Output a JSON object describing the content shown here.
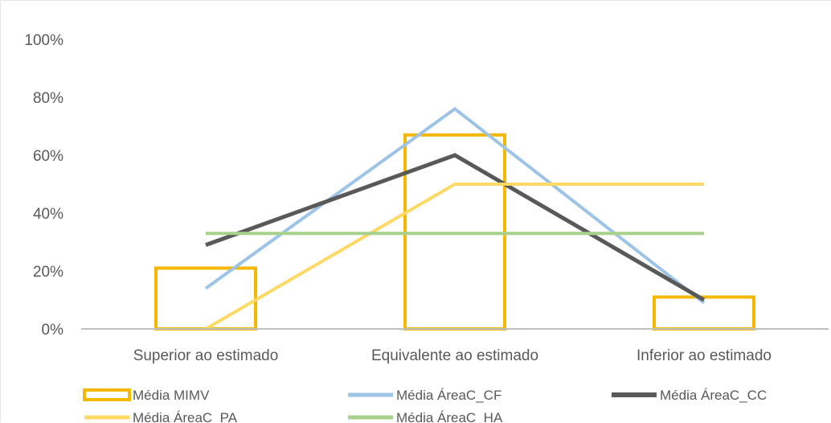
{
  "chart_data": {
    "type": "bar",
    "categories": [
      "Superior ao estimado",
      "Equivalente ao estimado",
      "Inferior ao estimado"
    ],
    "ylim": [
      0,
      100
    ],
    "yticks": [
      "0%",
      "20%",
      "40%",
      "60%",
      "80%",
      "100%"
    ],
    "ytick_values": [
      0,
      20,
      40,
      60,
      80,
      100
    ],
    "bar_series": {
      "name": "Média MIMV",
      "values": [
        21,
        67,
        11
      ],
      "color": "#f5b800"
    },
    "line_series": [
      {
        "name": "Média ÁreaC_CF",
        "values": [
          14,
          76,
          9
        ],
        "color": "#9dc3e6"
      },
      {
        "name": "Média ÁreaC_CC",
        "values": [
          29,
          60,
          10
        ],
        "color": "#595959"
      },
      {
        "name": "Média ÁreaC_PA",
        "values": [
          0,
          50,
          50
        ],
        "color": "#ffd966"
      },
      {
        "name": "Média ÁreaC_HA",
        "values": [
          33,
          33,
          33
        ],
        "color": "#a9d18e"
      }
    ],
    "grid": false,
    "legend_position": "bottom"
  }
}
